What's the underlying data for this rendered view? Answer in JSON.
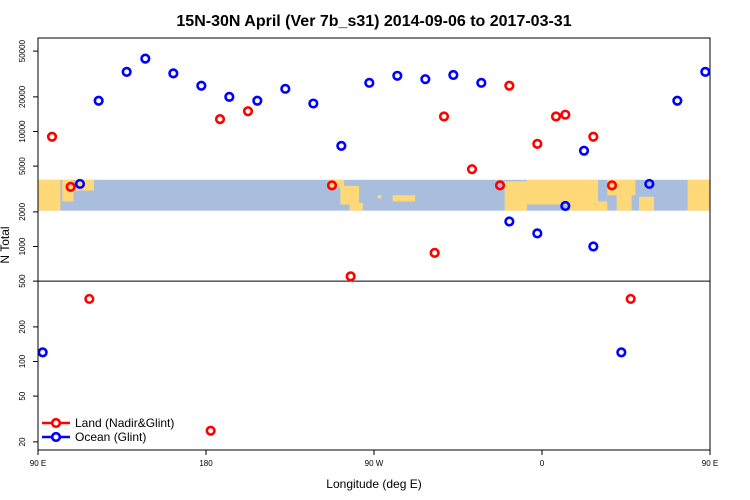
{
  "chart_data": {
    "type": "scatter",
    "title": "15N-30N April (Ver 7b_s31)   2014-09-06 to 2017-03-31",
    "xlabel": "Longitude (deg E)",
    "ylabel": "N Total",
    "y_scale": "log",
    "xlim": [
      90,
      450
    ],
    "ylim": [
      17,
      65000
    ],
    "x_ticks": [
      {
        "value": 90,
        "label": "90 E"
      },
      {
        "value": 180,
        "label": "180"
      },
      {
        "value": 270,
        "label": "90 W"
      },
      {
        "value": 360,
        "label": "0"
      },
      {
        "value": 450,
        "label": "90 E"
      },
      {
        "value": 540,
        "label": "180"
      }
    ],
    "y_ticks": [
      {
        "value": 20,
        "label": "20"
      },
      {
        "value": 50,
        "label": "50"
      },
      {
        "value": 100,
        "label": "100"
      },
      {
        "value": 200,
        "label": "200"
      },
      {
        "value": 500,
        "label": "500"
      },
      {
        "value": 1000,
        "label": "1000"
      },
      {
        "value": 2000,
        "label": "2000"
      },
      {
        "value": 5000,
        "label": "5000"
      },
      {
        "value": 10000,
        "label": "10000"
      },
      {
        "value": 20000,
        "label": "20000"
      },
      {
        "value": 50000,
        "label": "50000"
      }
    ],
    "hline": 500,
    "map_band": {
      "y_top": 3800,
      "y_bottom": 2050,
      "land_color": "#ffd878",
      "ocean_color": "#a8bedc"
    },
    "legend_position": "bottom-left",
    "series": [
      {
        "name": "Land (Nadir&Glint)",
        "color": "#ff0000",
        "points": [
          {
            "x": 97.5,
            "y": 9000
          },
          {
            "x": 107.5,
            "y": 3300
          },
          {
            "x": 117.5,
            "y": 350
          },
          {
            "x": 182.5,
            "y": 25
          },
          {
            "x": 187.5,
            "y": 12800
          },
          {
            "x": 202.5,
            "y": 15000
          },
          {
            "x": 247.5,
            "y": 3400
          },
          {
            "x": 257.5,
            "y": 550
          },
          {
            "x": 302.5,
            "y": 880
          },
          {
            "x": 307.5,
            "y": 13500
          },
          {
            "x": 322.5,
            "y": 4700
          },
          {
            "x": 337.5,
            "y": 3400
          },
          {
            "x": 342.5,
            "y": 25000
          },
          {
            "x": 357.5,
            "y": 7800
          },
          {
            "x": 367.5,
            "y": 13500
          },
          {
            "x": 372.5,
            "y": 14000
          },
          {
            "x": 387.5,
            "y": 9000
          },
          {
            "x": 397.5,
            "y": 3400
          },
          {
            "x": 407.5,
            "y": 350
          }
        ]
      },
      {
        "name": "Ocean (Glint)",
        "color": "#0000ff",
        "points": [
          {
            "x": 92.5,
            "y": 120
          },
          {
            "x": 112.5,
            "y": 3500
          },
          {
            "x": 122.5,
            "y": 18500
          },
          {
            "x": 137.5,
            "y": 33000
          },
          {
            "x": 147.5,
            "y": 43000
          },
          {
            "x": 162.5,
            "y": 32000
          },
          {
            "x": 177.5,
            "y": 25000
          },
          {
            "x": 192.5,
            "y": 20000
          },
          {
            "x": 207.5,
            "y": 18500
          },
          {
            "x": 222.5,
            "y": 23500
          },
          {
            "x": 237.5,
            "y": 17500
          },
          {
            "x": 252.5,
            "y": 7500
          },
          {
            "x": 267.5,
            "y": 26500
          },
          {
            "x": 282.5,
            "y": 30500
          },
          {
            "x": 297.5,
            "y": 28500
          },
          {
            "x": 312.5,
            "y": 31000
          },
          {
            "x": 327.5,
            "y": 26500
          },
          {
            "x": 342.5,
            "y": 1650
          },
          {
            "x": 357.5,
            "y": 1300
          },
          {
            "x": 372.5,
            "y": 2250
          },
          {
            "x": 382.5,
            "y": 6800
          },
          {
            "x": 387.5,
            "y": 1000
          },
          {
            "x": 402.5,
            "y": 120
          },
          {
            "x": 417.5,
            "y": 3500
          },
          {
            "x": 432.5,
            "y": 18500
          },
          {
            "x": 447.5,
            "y": 33000
          }
        ]
      }
    ]
  }
}
